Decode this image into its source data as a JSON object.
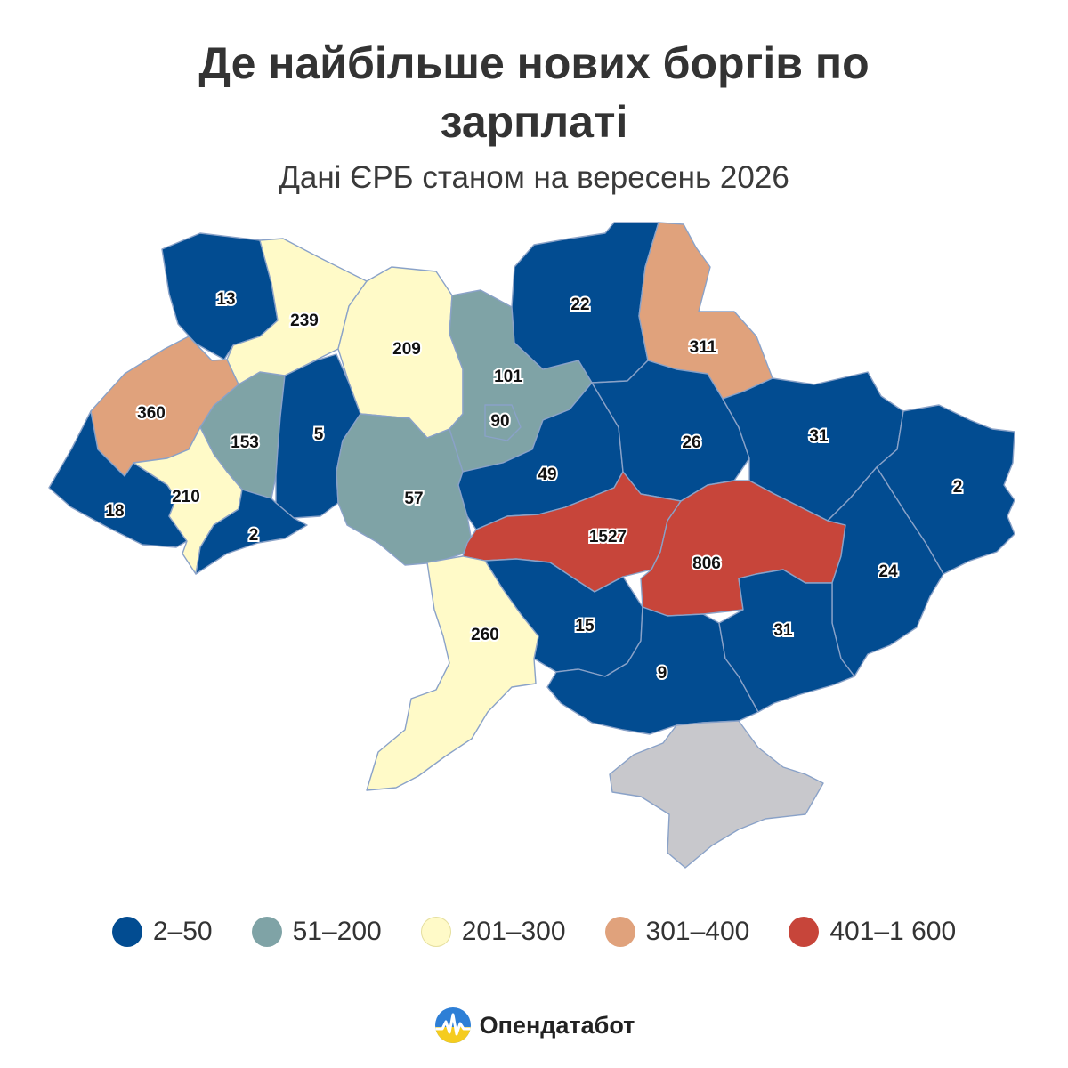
{
  "header": {
    "title_line1": "Де найбільше нових боргів по",
    "title_line2": "зарплаті",
    "subtitle": "Дані ЄРБ станом на вересень 2026"
  },
  "colors": {
    "c1": "#024c91",
    "c2": "#7fa3a6",
    "c3": "#fffac8",
    "c4": "#e0a27c",
    "c5": "#c7453a",
    "crimea": "#c8c8cc"
  },
  "regions": [
    {
      "name": "Волинська",
      "value": "13",
      "cls": "c1"
    },
    {
      "name": "Рівненська",
      "value": "239",
      "cls": "c3"
    },
    {
      "name": "Житомирська",
      "value": "209",
      "cls": "c3"
    },
    {
      "name": "Київська",
      "value": "101",
      "cls": "c2"
    },
    {
      "name": "м. Київ",
      "value": "90",
      "cls": "c2"
    },
    {
      "name": "Чернігівська",
      "value": "22",
      "cls": "c1"
    },
    {
      "name": "Сумська",
      "value": "311",
      "cls": "c4"
    },
    {
      "name": "Львівська",
      "value": "360",
      "cls": "c4"
    },
    {
      "name": "Тернопільська",
      "value": "153",
      "cls": "c2"
    },
    {
      "name": "Хмельницька",
      "value": "5",
      "cls": "c1"
    },
    {
      "name": "Вінницька",
      "value": "57",
      "cls": "c2"
    },
    {
      "name": "Черкаська",
      "value": "49",
      "cls": "c1"
    },
    {
      "name": "Полтавська",
      "value": "26",
      "cls": "c1"
    },
    {
      "name": "Харківська",
      "value": "31",
      "cls": "c1"
    },
    {
      "name": "Луганська",
      "value": "2",
      "cls": "c1"
    },
    {
      "name": "Закарпатська",
      "value": "18",
      "cls": "c1"
    },
    {
      "name": "Івано-Франківська",
      "value": "210",
      "cls": "c3"
    },
    {
      "name": "Чернівецька",
      "value": "2",
      "cls": "c1"
    },
    {
      "name": "Кіровоградська",
      "value": "1527",
      "cls": "c5"
    },
    {
      "name": "Дніпропетровська",
      "value": "806",
      "cls": "c5"
    },
    {
      "name": "Донецька",
      "value": "24",
      "cls": "c1"
    },
    {
      "name": "Миколаївська",
      "value": "15",
      "cls": "c1"
    },
    {
      "name": "Одеська",
      "value": "260",
      "cls": "c3"
    },
    {
      "name": "Херсонська",
      "value": "9",
      "cls": "c1"
    },
    {
      "name": "Запорізька",
      "value": "31",
      "cls": "c1"
    }
  ],
  "legend": [
    {
      "label": "2–50",
      "color": "#024c91"
    },
    {
      "label": "51–200",
      "color": "#7fa3a6"
    },
    {
      "label": "201–300",
      "color": "#fffac8"
    },
    {
      "label": "301–400",
      "color": "#e0a27c"
    },
    {
      "label": "401–1 600",
      "color": "#c7453a"
    }
  ],
  "brand": {
    "name": "Опендатабот"
  }
}
